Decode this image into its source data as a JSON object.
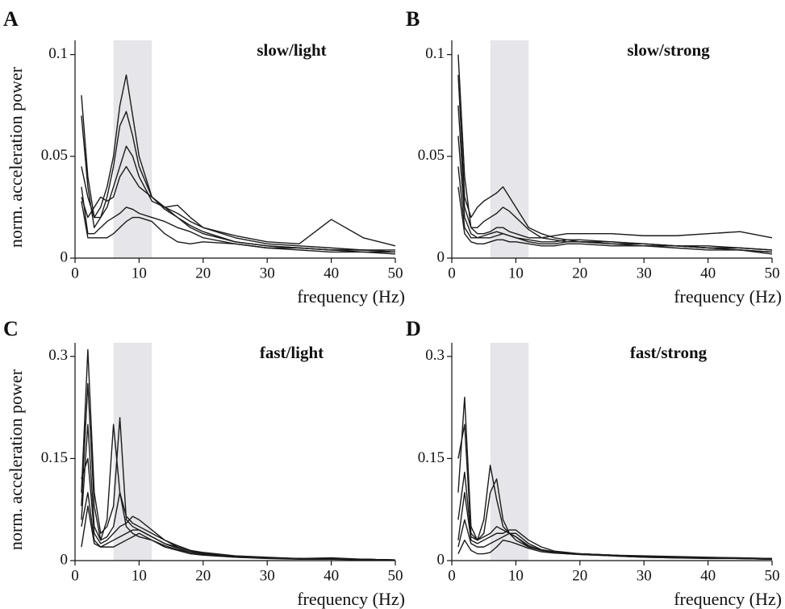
{
  "chart_data": [
    {
      "type": "line",
      "panel_label": "A",
      "title": "slow/light",
      "xlabel": "frequency (Hz)",
      "ylabel": "norm. acceleration power",
      "x": [
        1,
        2,
        3,
        4,
        5,
        6,
        7,
        8,
        9,
        10,
        12,
        14,
        16,
        18,
        20,
        25,
        30,
        35,
        40,
        45,
        50
      ],
      "xlim": [
        0,
        50
      ],
      "ylim": [
        0,
        0.107
      ],
      "xticks": [
        0,
        10,
        20,
        30,
        40,
        50
      ],
      "yticks": [
        0,
        0.05,
        0.1
      ],
      "shaded_band": [
        6,
        12
      ],
      "band_color": "#e6e6ea",
      "series": [
        {
          "color": "#1a1a1a",
          "values": [
            0.08,
            0.04,
            0.02,
            0.025,
            0.035,
            0.05,
            0.075,
            0.09,
            0.07,
            0.05,
            0.03,
            0.025,
            0.022,
            0.018,
            0.015,
            0.011,
            0.008,
            0.007,
            0.019,
            0.01,
            0.006
          ]
        },
        {
          "color": "#1a1a1a",
          "values": [
            0.07,
            0.035,
            0.015,
            0.02,
            0.03,
            0.045,
            0.065,
            0.072,
            0.06,
            0.045,
            0.03,
            0.024,
            0.02,
            0.016,
            0.013,
            0.008,
            0.006,
            0.005,
            0.004,
            0.004,
            0.003
          ]
        },
        {
          "color": "#1a1a1a",
          "values": [
            0.045,
            0.03,
            0.02,
            0.02,
            0.025,
            0.035,
            0.045,
            0.055,
            0.05,
            0.04,
            0.028,
            0.025,
            0.02,
            0.015,
            0.012,
            0.008,
            0.006,
            0.005,
            0.004,
            0.004,
            0.003
          ]
        },
        {
          "color": "#1a1a1a",
          "values": [
            0.03,
            0.02,
            0.025,
            0.03,
            0.028,
            0.03,
            0.04,
            0.045,
            0.04,
            0.035,
            0.03,
            0.025,
            0.026,
            0.02,
            0.015,
            0.01,
            0.007,
            0.006,
            0.005,
            0.004,
            0.004
          ]
        },
        {
          "color": "#1a1a1a",
          "values": [
            0.035,
            0.012,
            0.012,
            0.015,
            0.018,
            0.02,
            0.022,
            0.025,
            0.024,
            0.022,
            0.02,
            0.018,
            0.015,
            0.013,
            0.01,
            0.007,
            0.005,
            0.005,
            0.004,
            0.003,
            0.003
          ]
        },
        {
          "color": "#1a1a1a",
          "values": [
            0.028,
            0.01,
            0.01,
            0.01,
            0.01,
            0.012,
            0.015,
            0.018,
            0.02,
            0.02,
            0.018,
            0.012,
            0.008,
            0.007,
            0.008,
            0.007,
            0.005,
            0.004,
            0.003,
            0.003,
            0.002
          ]
        }
      ]
    },
    {
      "type": "line",
      "panel_label": "B",
      "title": "slow/strong",
      "xlabel": "frequency (Hz)",
      "x": [
        1,
        2,
        3,
        4,
        5,
        6,
        7,
        8,
        9,
        10,
        12,
        14,
        16,
        18,
        20,
        25,
        30,
        35,
        40,
        45,
        50
      ],
      "xlim": [
        0,
        50
      ],
      "ylim": [
        0,
        0.107
      ],
      "xticks": [
        0,
        10,
        20,
        30,
        40,
        50
      ],
      "yticks": [
        0,
        0.05,
        0.1
      ],
      "shaded_band": [
        6,
        12
      ],
      "band_color": "#e6e6ea",
      "series": [
        {
          "color": "#1a1a1a",
          "values": [
            0.1,
            0.04,
            0.015,
            0.012,
            0.012,
            0.013,
            0.015,
            0.015,
            0.013,
            0.012,
            0.01,
            0.01,
            0.011,
            0.012,
            0.012,
            0.012,
            0.011,
            0.011,
            0.012,
            0.013,
            0.01
          ]
        },
        {
          "color": "#1a1a1a",
          "values": [
            0.09,
            0.03,
            0.02,
            0.025,
            0.028,
            0.03,
            0.032,
            0.035,
            0.03,
            0.025,
            0.015,
            0.012,
            0.01,
            0.009,
            0.008,
            0.008,
            0.007,
            0.006,
            0.006,
            0.005,
            0.004
          ]
        },
        {
          "color": "#1a1a1a",
          "values": [
            0.075,
            0.025,
            0.015,
            0.015,
            0.018,
            0.02,
            0.022,
            0.025,
            0.023,
            0.02,
            0.014,
            0.01,
            0.009,
            0.008,
            0.008,
            0.007,
            0.006,
            0.006,
            0.005,
            0.005,
            0.004
          ]
        },
        {
          "color": "#1a1a1a",
          "values": [
            0.06,
            0.02,
            0.012,
            0.01,
            0.01,
            0.01,
            0.011,
            0.012,
            0.011,
            0.01,
            0.009,
            0.008,
            0.008,
            0.009,
            0.009,
            0.008,
            0.007,
            0.006,
            0.005,
            0.004,
            0.003
          ]
        },
        {
          "color": "#1a1a1a",
          "values": [
            0.045,
            0.015,
            0.01,
            0.01,
            0.011,
            0.012,
            0.013,
            0.012,
            0.011,
            0.01,
            0.008,
            0.007,
            0.007,
            0.008,
            0.008,
            0.007,
            0.007,
            0.006,
            0.005,
            0.004,
            0.003
          ]
        },
        {
          "color": "#1a1a1a",
          "values": [
            0.035,
            0.012,
            0.008,
            0.007,
            0.007,
            0.008,
            0.009,
            0.009,
            0.008,
            0.008,
            0.007,
            0.006,
            0.006,
            0.007,
            0.007,
            0.006,
            0.006,
            0.005,
            0.004,
            0.004,
            0.002
          ]
        }
      ]
    },
    {
      "type": "line",
      "panel_label": "C",
      "title": "fast/light",
      "xlabel": "frequency (Hz)",
      "ylabel": "norm. acceleration power",
      "x": [
        1,
        2,
        3,
        4,
        5,
        6,
        7,
        8,
        9,
        10,
        12,
        14,
        16,
        18,
        20,
        25,
        30,
        35,
        40,
        45,
        50
      ],
      "xlim": [
        0,
        50
      ],
      "ylim": [
        0,
        0.32
      ],
      "xticks": [
        0,
        10,
        20,
        30,
        40,
        50
      ],
      "yticks": [
        0,
        0.15,
        0.3
      ],
      "shaded_band": [
        6,
        12
      ],
      "band_color": "#e6e6ea",
      "series": [
        {
          "color": "#1a1a1a",
          "values": [
            0.1,
            0.31,
            0.1,
            0.04,
            0.05,
            0.08,
            0.21,
            0.06,
            0.05,
            0.045,
            0.035,
            0.025,
            0.018,
            0.012,
            0.01,
            0.006,
            0.004,
            0.003,
            0.004,
            0.002,
            0.001
          ]
        },
        {
          "color": "#1a1a1a",
          "values": [
            0.08,
            0.26,
            0.08,
            0.03,
            0.06,
            0.2,
            0.1,
            0.05,
            0.04,
            0.035,
            0.03,
            0.02,
            0.015,
            0.01,
            0.008,
            0.005,
            0.003,
            0.002,
            0.002,
            0.002,
            0.001
          ]
        },
        {
          "color": "#1a1a1a",
          "values": [
            0.06,
            0.2,
            0.05,
            0.03,
            0.035,
            0.05,
            0.1,
            0.065,
            0.055,
            0.05,
            0.04,
            0.03,
            0.02,
            0.014,
            0.011,
            0.006,
            0.004,
            0.003,
            0.002,
            0.002,
            0.001
          ]
        },
        {
          "color": "#1a1a1a",
          "values": [
            0.12,
            0.15,
            0.04,
            0.025,
            0.03,
            0.04,
            0.05,
            0.055,
            0.065,
            0.06,
            0.045,
            0.03,
            0.022,
            0.015,
            0.012,
            0.007,
            0.005,
            0.003,
            0.002,
            0.002,
            0.001
          ]
        },
        {
          "color": "#1a1a1a",
          "values": [
            0.05,
            0.1,
            0.03,
            0.02,
            0.025,
            0.03,
            0.035,
            0.04,
            0.045,
            0.045,
            0.035,
            0.025,
            0.02,
            0.014,
            0.01,
            0.006,
            0.004,
            0.003,
            0.002,
            0.002,
            0.001
          ]
        },
        {
          "color": "#1a1a1a",
          "values": [
            0.02,
            0.08,
            0.025,
            0.02,
            0.02,
            0.02,
            0.025,
            0.03,
            0.035,
            0.04,
            0.03,
            0.022,
            0.016,
            0.012,
            0.009,
            0.005,
            0.004,
            0.003,
            0.002,
            0.001,
            0.001
          ]
        }
      ]
    },
    {
      "type": "line",
      "panel_label": "D",
      "title": "fast/strong",
      "xlabel": "frequency (Hz)",
      "x": [
        1,
        2,
        3,
        4,
        5,
        6,
        7,
        8,
        9,
        10,
        12,
        14,
        16,
        18,
        20,
        25,
        30,
        35,
        40,
        45,
        50
      ],
      "xlim": [
        0,
        50
      ],
      "ylim": [
        0,
        0.32
      ],
      "xticks": [
        0,
        10,
        20,
        30,
        40,
        50
      ],
      "yticks": [
        0,
        0.15,
        0.3
      ],
      "shaded_band": [
        6,
        12
      ],
      "band_color": "#e6e6ea",
      "series": [
        {
          "color": "#1a1a1a",
          "values": [
            0.1,
            0.24,
            0.05,
            0.03,
            0.06,
            0.14,
            0.09,
            0.05,
            0.04,
            0.035,
            0.02,
            0.015,
            0.012,
            0.011,
            0.01,
            0.008,
            0.007,
            0.006,
            0.005,
            0.004,
            0.003
          ]
        },
        {
          "color": "#1a1a1a",
          "values": [
            0.15,
            0.2,
            0.04,
            0.03,
            0.04,
            0.1,
            0.12,
            0.06,
            0.04,
            0.03,
            0.02,
            0.016,
            0.013,
            0.011,
            0.01,
            0.008,
            0.006,
            0.005,
            0.004,
            0.004,
            0.003
          ]
        },
        {
          "color": "#1a1a1a",
          "values": [
            0.06,
            0.13,
            0.035,
            0.03,
            0.035,
            0.04,
            0.05,
            0.045,
            0.04,
            0.04,
            0.025,
            0.016,
            0.012,
            0.011,
            0.01,
            0.008,
            0.006,
            0.005,
            0.004,
            0.003,
            0.003
          ]
        },
        {
          "color": "#1a1a1a",
          "values": [
            0.03,
            0.1,
            0.03,
            0.025,
            0.03,
            0.035,
            0.04,
            0.04,
            0.045,
            0.045,
            0.03,
            0.02,
            0.014,
            0.012,
            0.01,
            0.008,
            0.006,
            0.005,
            0.004,
            0.003,
            0.002
          ]
        },
        {
          "color": "#1a1a1a",
          "values": [
            0.02,
            0.06,
            0.025,
            0.02,
            0.02,
            0.025,
            0.03,
            0.035,
            0.04,
            0.035,
            0.022,
            0.015,
            0.012,
            0.01,
            0.009,
            0.007,
            0.005,
            0.004,
            0.004,
            0.003,
            0.002
          ]
        },
        {
          "color": "#1a1a1a",
          "values": [
            0.01,
            0.03,
            0.015,
            0.01,
            0.01,
            0.012,
            0.02,
            0.03,
            0.028,
            0.025,
            0.018,
            0.013,
            0.011,
            0.01,
            0.009,
            0.007,
            0.005,
            0.004,
            0.003,
            0.003,
            0.002
          ]
        }
      ]
    }
  ]
}
